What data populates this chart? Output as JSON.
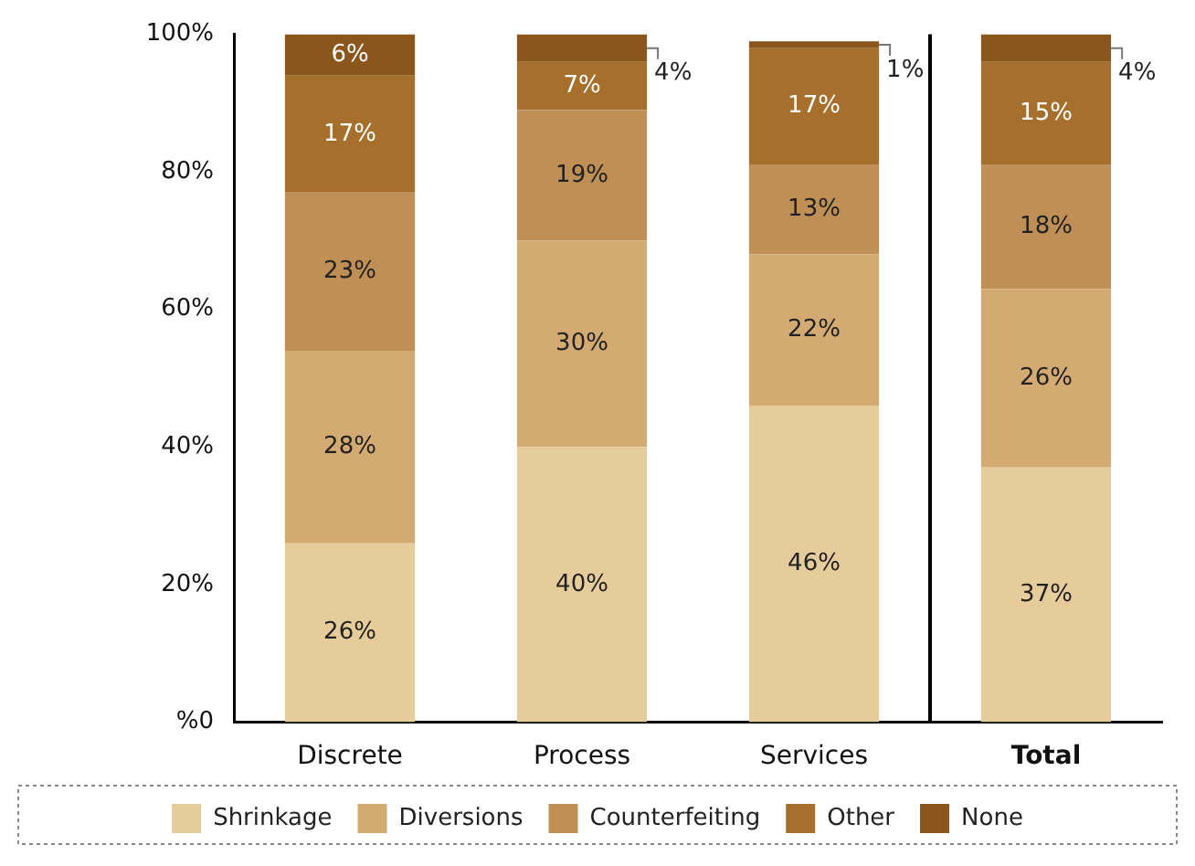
{
  "chart_data": {
    "type": "bar",
    "stacked": true,
    "categories": [
      "Discrete",
      "Process",
      "Services",
      "Total"
    ],
    "series": [
      {
        "name": "Shrinkage",
        "color": "#e6cc9a",
        "values": [
          26,
          40,
          46,
          37
        ],
        "value_labels": [
          "26%",
          "40%",
          "46%",
          "37%"
        ]
      },
      {
        "name": "Diversions",
        "color": "#d3aa72",
        "values": [
          28,
          30,
          22,
          26
        ],
        "value_labels": [
          "28%",
          "30%",
          "22%",
          "26%"
        ]
      },
      {
        "name": "Counterfeiting",
        "color": "#c08f55",
        "values": [
          23,
          19,
          13,
          18
        ],
        "value_labels": [
          "23%",
          "19%",
          "13%",
          "18%"
        ]
      },
      {
        "name": "Other",
        "color": "#a66f2c",
        "values": [
          17,
          7,
          17,
          15
        ],
        "value_labels": [
          "17%",
          "7%",
          "17%",
          "15%"
        ]
      },
      {
        "name": "None",
        "color": "#8a561b",
        "values": [
          6,
          4,
          1,
          4
        ],
        "value_labels": [
          "6%",
          "4%",
          "1%",
          "4%"
        ]
      }
    ],
    "ylim": [
      0,
      100
    ],
    "yticks": [
      {
        "value": 0,
        "label": "%0"
      },
      {
        "value": 20,
        "label": "20%"
      },
      {
        "value": 40,
        "label": "40%"
      },
      {
        "value": 60,
        "label": "60%"
      },
      {
        "value": 80,
        "label": "80%"
      },
      {
        "value": 100,
        "label": "100%"
      }
    ],
    "grid": false,
    "legend": "bottom"
  }
}
